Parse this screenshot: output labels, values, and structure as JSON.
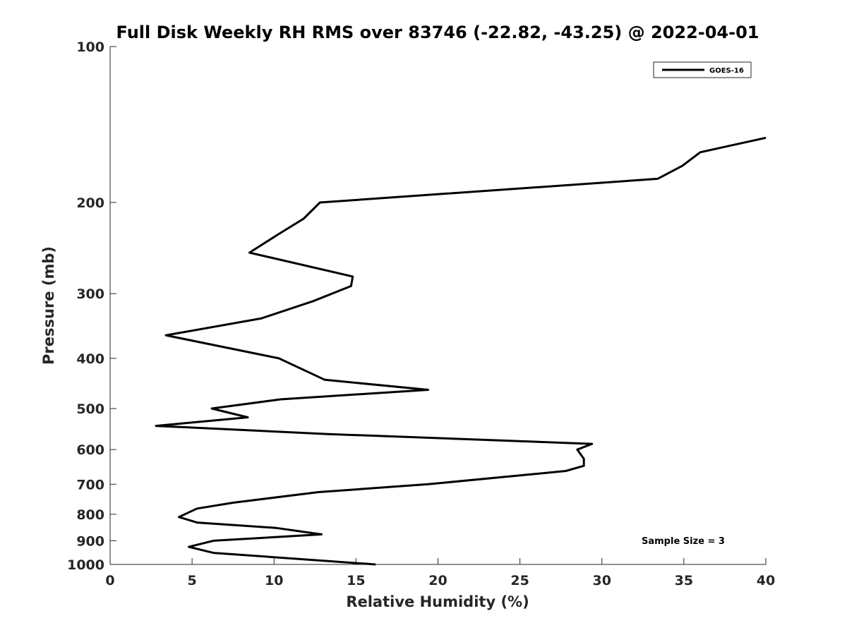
{
  "chart_data": {
    "type": "line",
    "title": "Full Disk Weekly RH RMS over 83746 (-22.82, -43.25) @ 2022-04-01",
    "xlabel": "Relative Humidity (%)",
    "ylabel": "Pressure (mb)",
    "xlim": [
      0,
      40
    ],
    "ylim": [
      100,
      1000
    ],
    "yscale": "log",
    "y_reversed": true,
    "xticks": [
      0,
      5,
      10,
      15,
      20,
      25,
      30,
      35,
      40
    ],
    "yticks": [
      100,
      200,
      300,
      400,
      500,
      600,
      700,
      800,
      900,
      1000
    ],
    "grid": false,
    "legend_position": "top-right",
    "annotation": "Sample Size = 3",
    "series": [
      {
        "name": "GOES-16",
        "color": "#000000",
        "x": [
          40.0,
          36.0,
          34.9,
          33.4,
          12.8,
          11.8,
          10.3,
          8.5,
          14.8,
          14.7,
          12.4,
          9.2,
          3.4,
          10.3,
          13.1,
          19.4,
          10.4,
          6.2,
          8.4,
          2.8,
          13.3,
          29.4,
          28.5,
          28.9,
          28.9,
          27.8,
          19.4,
          12.7,
          7.5,
          5.3,
          4.2,
          5.3,
          10.1,
          12.9,
          6.3,
          4.8,
          6.3,
          16.2
        ],
        "y": [
          150,
          160,
          170,
          180,
          200,
          215,
          230,
          250,
          278,
          290,
          310,
          335,
          361,
          400,
          440,
          460,
          480,
          500,
          520,
          540,
          560,
          585,
          600,
          625,
          645,
          660,
          700,
          725,
          760,
          780,
          810,
          830,
          850,
          875,
          900,
          925,
          950,
          1000
        ]
      }
    ]
  }
}
